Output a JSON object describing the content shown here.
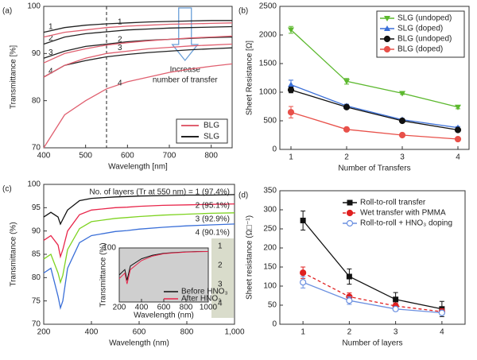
{
  "chart_data": [
    {
      "type": "line",
      "panel_label": "(a)",
      "xlabel": "Wavelength [nm]",
      "ylabel": "Transmittance [%]",
      "x": [
        400,
        450,
        500,
        550,
        600,
        650,
        700,
        750,
        800,
        850
      ],
      "xlim": [
        400,
        850
      ],
      "xticks": [
        400,
        500,
        600,
        700,
        800
      ],
      "ylim": [
        70,
        100
      ],
      "yticks": [
        70,
        80,
        90,
        100
      ],
      "reference_x": 550,
      "annotation": [
        "Increase",
        "number of transfer"
      ],
      "legend": [
        {
          "name": "BLG",
          "color": "#e06070"
        },
        {
          "name": "SLG",
          "color": "#222222"
        }
      ],
      "series": [
        {
          "name": "1",
          "color": "#222222",
          "values": [
            94.5,
            95.5,
            96,
            96.3,
            96.5,
            96.7,
            96.8,
            96.9,
            97,
            97
          ]
        },
        {
          "name": "2",
          "color": "#222222",
          "values": [
            92,
            93.5,
            94.2,
            94.6,
            95,
            95.2,
            95.4,
            95.5,
            95.6,
            95.7
          ]
        },
        {
          "name": "3",
          "color": "#222222",
          "values": [
            89,
            90.5,
            91.5,
            92,
            92.5,
            92.8,
            93,
            93.2,
            93.4,
            93.5
          ]
        },
        {
          "name": "4",
          "color": "#222222",
          "values": [
            85,
            87.5,
            88.5,
            89.3,
            89.8,
            90.2,
            90.5,
            90.8,
            91,
            91.2
          ]
        },
        {
          "name": "1",
          "color": "#e06070",
          "values": [
            93.5,
            94.5,
            95,
            95.5,
            95.8,
            96,
            96.2,
            96.3,
            96.4,
            96.5
          ]
        },
        {
          "name": "2",
          "color": "#e06070",
          "values": [
            88,
            90,
            91,
            91.8,
            92.3,
            92.7,
            93,
            93.3,
            93.5,
            93.7
          ]
        },
        {
          "name": "3",
          "color": "#e06070",
          "values": [
            85,
            87.5,
            89,
            90,
            90.5,
            91,
            91.3,
            91.6,
            91.8,
            92
          ]
        },
        {
          "name": "4",
          "color": "#e06070",
          "values": [
            70,
            77,
            80,
            82.5,
            84,
            85,
            86,
            86.7,
            87.3,
            87.8
          ]
        }
      ]
    },
    {
      "type": "line",
      "panel_label": "(b)",
      "xlabel": "Number of Transfers",
      "ylabel": "Sheet Resistance [Ω]",
      "x": [
        1,
        2,
        3,
        4
      ],
      "xlim": [
        0.8,
        4.2
      ],
      "xticks": [
        1,
        2,
        3,
        4
      ],
      "ylim": [
        0,
        2500
      ],
      "yticks": [
        0,
        500,
        1000,
        1500,
        2000,
        2500
      ],
      "legend_position": "upper right",
      "series": [
        {
          "name": "SLG (undoped)",
          "color": "#5cb82e",
          "marker": "triangle-down",
          "values": [
            2090,
            1190,
            980,
            740
          ],
          "errors": [
            60,
            50,
            20,
            30
          ]
        },
        {
          "name": "SLG (doped)",
          "color": "#3a6fd8",
          "marker": "triangle-up",
          "values": [
            1130,
            760,
            520,
            380
          ],
          "errors": [
            80,
            30,
            20,
            20
          ]
        },
        {
          "name": "BLG (undoped)",
          "color": "#111111",
          "marker": "circle",
          "values": [
            1040,
            740,
            500,
            340
          ],
          "errors": [
            50,
            30,
            20,
            20
          ]
        },
        {
          "name": "BLG (doped)",
          "color": "#e8514a",
          "marker": "circle",
          "values": [
            650,
            350,
            250,
            180
          ],
          "errors": [
            100,
            20,
            15,
            15
          ]
        }
      ]
    },
    {
      "type": "line",
      "panel_label": "(c)",
      "xlabel": "Wavelength (nm)",
      "ylabel": "Transmittance (%)",
      "x": [
        200,
        230,
        260,
        270,
        280,
        300,
        350,
        400,
        500,
        550,
        600,
        700,
        800,
        900,
        1000
      ],
      "xlim": [
        200,
        1000
      ],
      "xticks": [
        200,
        400,
        600,
        800,
        {
          "value": 1000,
          "label": "1,000"
        }
      ],
      "ylim": [
        70,
        100
      ],
      "yticks": [
        70,
        75,
        80,
        85,
        90,
        95,
        100
      ],
      "strip_labels": [
        "1",
        "2",
        "3",
        "4"
      ],
      "series": [
        {
          "name": "No. of layers (Tr at 550 nm) = 1 (97.4%)",
          "color": "#111111",
          "values": [
            93,
            94,
            93,
            91.5,
            92.5,
            94.5,
            96.5,
            97,
            97.3,
            97.4,
            97.5,
            97.6,
            97.7,
            97.7,
            97.8
          ]
        },
        {
          "name": "2 (95.1%)",
          "color": "#e8254a",
          "values": [
            88,
            89,
            87,
            84.5,
            86,
            90,
            93.5,
            94.5,
            95,
            95.1,
            95.3,
            95.5,
            95.6,
            95.7,
            95.8
          ]
        },
        {
          "name": "3 (92.9%)",
          "color": "#7ed321",
          "values": [
            84,
            85,
            81,
            79,
            80.5,
            86,
            90.5,
            92,
            92.7,
            92.9,
            93.1,
            93.4,
            93.6,
            93.8,
            93.9
          ]
        },
        {
          "name": "4 (90.1%)",
          "color": "#3a6fd8",
          "values": [
            81,
            82,
            76,
            73.5,
            75,
            82,
            87.5,
            89,
            89.9,
            90.1,
            90.4,
            90.8,
            91.1,
            91.3,
            91.5
          ]
        }
      ]
    },
    {
      "type": "line",
      "panel_label": "(d)",
      "xlabel": "Number of layers",
      "ylabel": "Sheet resistance (Ω□⁻¹)",
      "x": [
        1,
        2,
        3,
        4
      ],
      "xlim": [
        0.5,
        4.5
      ],
      "xticks": [
        1,
        2,
        3,
        4
      ],
      "ylim": [
        0,
        350
      ],
      "yticks": [
        0,
        50,
        100,
        150,
        200,
        250,
        300,
        350
      ],
      "legend_position": "upper right",
      "series": [
        {
          "name": "Roll-to-roll transfer",
          "color": "#111111",
          "marker": "square",
          "values": [
            272,
            125,
            65,
            40
          ],
          "errors": [
            25,
            20,
            18,
            20
          ]
        },
        {
          "name": "Wet transfer with PMMA",
          "color": "#e02020",
          "marker": "circle",
          "dash": true,
          "values": [
            135,
            72,
            48,
            33
          ],
          "errors": [
            15,
            10,
            8,
            8
          ]
        },
        {
          "name": "Roll-to-roll + HNO₃ doping",
          "color": "#6a8fe0",
          "marker": "circle-open",
          "values": [
            110,
            62,
            40,
            30
          ],
          "errors": [
            15,
            10,
            5,
            5
          ]
        }
      ]
    },
    {
      "type": "line",
      "xlabel": "Wavelength (nm)",
      "ylabel": "Transmittance (%)",
      "x": [
        200,
        250,
        270,
        300,
        400,
        500,
        600,
        700,
        800,
        900,
        1000
      ],
      "xlim": [
        200,
        1000
      ],
      "xticks": [
        200,
        400,
        600,
        800,
        1000
      ],
      "ylim": [
        70,
        100
      ],
      "yticks": [
        100
      ],
      "series": [
        {
          "name": "Before HNO₃",
          "color": "#111111",
          "values": [
            85,
            88,
            82,
            90,
            94,
            96,
            97,
            97.5,
            97.8,
            98,
            98
          ]
        },
        {
          "name": "After HNO₃",
          "color": "#e8254a",
          "values": [
            83,
            86,
            80,
            88,
            93,
            95.5,
            96.8,
            97.3,
            97.7,
            97.9,
            98
          ]
        }
      ]
    }
  ]
}
